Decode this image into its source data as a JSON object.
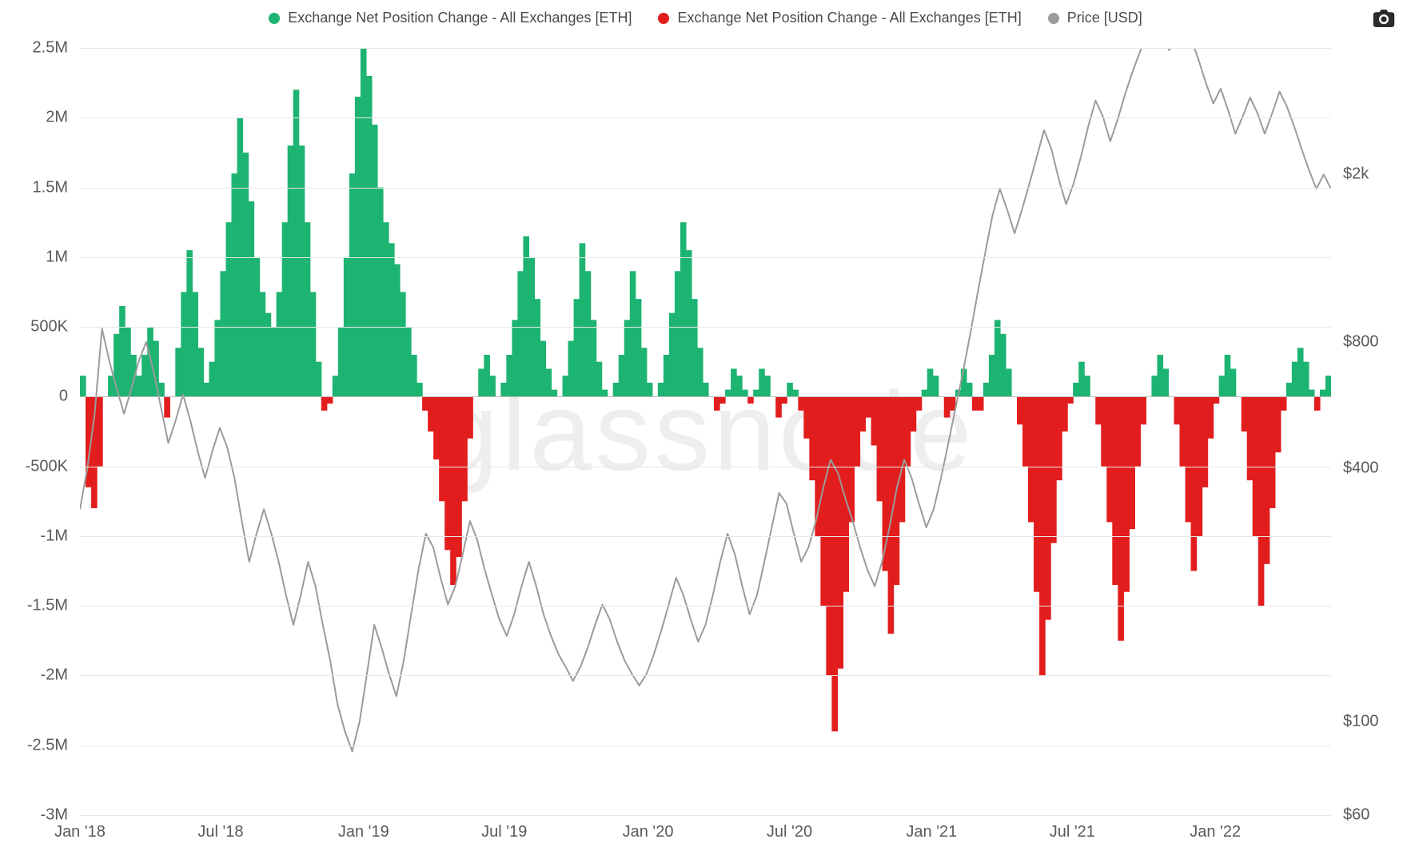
{
  "legend": {
    "series_pos": {
      "label": "Exchange Net Position Change - All Exchanges [ETH]",
      "color": "#1db472"
    },
    "series_neg": {
      "label": "Exchange Net Position Change - All Exchanges [ETH]",
      "color": "#e21d1d"
    },
    "series_price": {
      "label": "Price [USD]",
      "color": "#9b9b9b"
    }
  },
  "watermark": "glassnode",
  "colors": {
    "background": "#ffffff",
    "grid": "#e8e8e8",
    "baseline": "#bdbdbd",
    "text": "#5a5a5a"
  },
  "left_axis": {
    "min": -3000000,
    "max": 2500000,
    "ticks": [
      {
        "v": 2500000,
        "label": "2.5M"
      },
      {
        "v": 2000000,
        "label": "2M"
      },
      {
        "v": 1500000,
        "label": "1.5M"
      },
      {
        "v": 1000000,
        "label": "1M"
      },
      {
        "v": 500000,
        "label": "500K"
      },
      {
        "v": 0,
        "label": "0"
      },
      {
        "v": -500000,
        "label": "-500K"
      },
      {
        "v": -1000000,
        "label": "-1M"
      },
      {
        "v": -1500000,
        "label": "-1.5M"
      },
      {
        "v": -2000000,
        "label": "-2M"
      },
      {
        "v": -2500000,
        "label": "-2.5M"
      },
      {
        "v": -3000000,
        "label": "-3M"
      }
    ]
  },
  "right_axis": {
    "type": "log",
    "min": 60,
    "max": 4000,
    "ticks": [
      {
        "v": 2000,
        "label": "$2k"
      },
      {
        "v": 800,
        "label": "$800"
      },
      {
        "v": 400,
        "label": "$400"
      },
      {
        "v": 100,
        "label": "$100"
      },
      {
        "v": 60,
        "label": "$60"
      }
    ]
  },
  "x_axis": {
    "start": 0,
    "end": 1610,
    "ticks": [
      {
        "d": 0,
        "label": "Jan '18"
      },
      {
        "d": 181,
        "label": "Jul '18"
      },
      {
        "d": 365,
        "label": "Jan '19"
      },
      {
        "d": 546,
        "label": "Jul '19"
      },
      {
        "d": 731,
        "label": "Jan '20"
      },
      {
        "d": 913,
        "label": "Jul '20"
      },
      {
        "d": 1096,
        "label": "Jan '21"
      },
      {
        "d": 1277,
        "label": "Jul '21"
      },
      {
        "d": 1461,
        "label": "Jan '22"
      }
    ]
  },
  "bars_shape": [
    0.06,
    -0.26,
    -0.32,
    -0.2,
    0,
    0.06,
    0.18,
    0.26,
    0.2,
    0.12,
    0.06,
    0.12,
    0.2,
    0.16,
    0.04,
    -0.06,
    0,
    0.14,
    0.3,
    0.42,
    0.3,
    0.14,
    0.04,
    0.1,
    0.22,
    0.36,
    0.5,
    0.64,
    0.8,
    0.7,
    0.56,
    0.4,
    0.3,
    0.24,
    0.2,
    0.3,
    0.5,
    0.72,
    0.88,
    0.72,
    0.5,
    0.3,
    0.1,
    -0.04,
    -0.02,
    0.06,
    0.2,
    0.4,
    0.64,
    0.86,
    1.0,
    0.92,
    0.78,
    0.6,
    0.5,
    0.44,
    0.38,
    0.3,
    0.2,
    0.12,
    0.04,
    -0.04,
    -0.1,
    -0.18,
    -0.3,
    -0.44,
    -0.54,
    -0.46,
    -0.3,
    -0.12,
    0,
    0.08,
    0.12,
    0.06,
    0,
    0.04,
    0.12,
    0.22,
    0.36,
    0.46,
    0.4,
    0.28,
    0.16,
    0.08,
    0.02,
    0,
    0.06,
    0.16,
    0.28,
    0.44,
    0.36,
    0.22,
    0.1,
    0.02,
    0,
    0.04,
    0.12,
    0.22,
    0.36,
    0.28,
    0.14,
    0.04,
    0,
    0.04,
    0.12,
    0.24,
    0.36,
    0.5,
    0.42,
    0.28,
    0.14,
    0.04,
    0,
    -0.04,
    -0.02,
    0.02,
    0.08,
    0.06,
    0.02,
    -0.02,
    0.02,
    0.08,
    0.06,
    0,
    -0.06,
    -0.02,
    0.04,
    0.02,
    -0.04,
    -0.12,
    -0.24,
    -0.4,
    -0.6,
    -0.8,
    -0.96,
    -0.78,
    -0.56,
    -0.36,
    -0.2,
    -0.1,
    -0.06,
    -0.14,
    -0.3,
    -0.5,
    -0.68,
    -0.54,
    -0.36,
    -0.2,
    -0.1,
    -0.04,
    0.02,
    0.08,
    0.06,
    0,
    -0.06,
    -0.04,
    0.02,
    0.08,
    0.04,
    -0.04,
    -0.04,
    0.04,
    0.12,
    0.22,
    0.18,
    0.08,
    0,
    -0.08,
    -0.2,
    -0.36,
    -0.56,
    -0.8,
    -0.64,
    -0.42,
    -0.24,
    -0.1,
    -0.02,
    0.04,
    0.1,
    0.06,
    0,
    -0.08,
    -0.2,
    -0.36,
    -0.54,
    -0.7,
    -0.56,
    -0.38,
    -0.2,
    -0.08,
    0,
    0.06,
    0.12,
    0.08,
    0,
    -0.08,
    -0.2,
    -0.36,
    -0.5,
    -0.4,
    -0.26,
    -0.12,
    -0.02,
    0.06,
    0.12,
    0.08,
    0,
    -0.1,
    -0.24,
    -0.4,
    -0.6,
    -0.48,
    -0.32,
    -0.16,
    -0.04,
    0.04,
    0.1,
    0.14,
    0.1,
    0.02,
    -0.04,
    0.02,
    0.06
  ],
  "bar_scale": 2500000,
  "price_shape": [
    320,
    400,
    540,
    860,
    720,
    620,
    540,
    620,
    720,
    800,
    680,
    560,
    460,
    520,
    600,
    520,
    440,
    380,
    440,
    500,
    450,
    380,
    300,
    240,
    280,
    320,
    280,
    240,
    200,
    170,
    200,
    240,
    210,
    170,
    140,
    110,
    95,
    85,
    100,
    130,
    170,
    150,
    130,
    115,
    140,
    180,
    230,
    280,
    260,
    220,
    190,
    210,
    250,
    300,
    270,
    230,
    200,
    175,
    160,
    180,
    210,
    240,
    210,
    180,
    160,
    145,
    135,
    125,
    135,
    150,
    170,
    190,
    175,
    155,
    140,
    130,
    122,
    130,
    145,
    165,
    190,
    220,
    200,
    175,
    155,
    170,
    200,
    240,
    280,
    250,
    210,
    180,
    200,
    240,
    290,
    350,
    330,
    280,
    240,
    260,
    300,
    360,
    420,
    390,
    340,
    300,
    260,
    230,
    210,
    240,
    290,
    360,
    420,
    380,
    330,
    290,
    320,
    380,
    460,
    560,
    680,
    840,
    1050,
    1300,
    1600,
    1850,
    1650,
    1450,
    1650,
    1900,
    2200,
    2550,
    2300,
    1950,
    1700,
    1900,
    2200,
    2600,
    3000,
    2750,
    2400,
    2700,
    3100,
    3500,
    3900,
    4300,
    4700,
    4400,
    3950,
    4250,
    4600,
    4200,
    3750,
    3300,
    2950,
    3200,
    2850,
    2500,
    2750,
    3050,
    2800,
    2500,
    2800,
    3150,
    2900,
    2600,
    2300,
    2050,
    1850,
    2000,
    1850
  ],
  "price_line": {
    "width": 2,
    "color": "#9b9b9b"
  }
}
